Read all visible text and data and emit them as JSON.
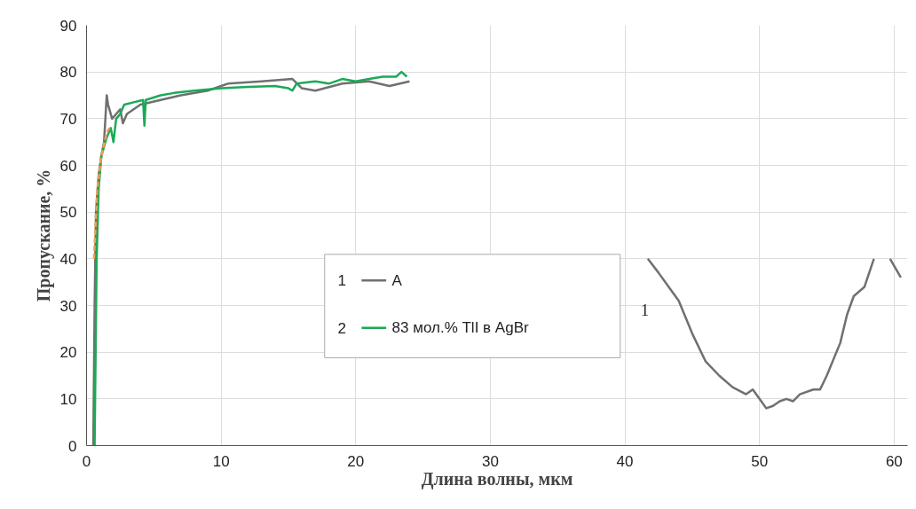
{
  "chart_data": {
    "type": "line",
    "xlabel": "Длина волны, мкм",
    "ylabel": "Пропускание, %",
    "xlim": [
      0,
      61
    ],
    "ylim": [
      0,
      90
    ],
    "xticks": [
      0,
      10,
      20,
      30,
      40,
      50,
      60
    ],
    "yticks": [
      0,
      10,
      20,
      30,
      40,
      50,
      60,
      70,
      80,
      90
    ],
    "grid": true,
    "legend": "center",
    "line_style": "solid",
    "marker": "none",
    "series": [
      {
        "name": "A",
        "color": "#707070",
        "x": [
          0.5,
          0.6,
          0.7,
          0.9,
          1.1,
          1.3,
          1.5,
          1.6,
          1.9,
          2.5,
          2.7,
          3,
          4,
          5.5,
          7,
          9,
          10.5,
          13,
          15.3,
          16,
          17,
          19,
          21,
          22.5,
          24,
          33,
          41.7,
          42.5,
          43.5,
          44,
          45,
          46,
          47,
          48,
          49,
          49.5,
          50,
          50.5,
          51,
          51.5,
          52,
          52.5,
          53,
          54,
          54.5,
          55,
          56,
          56.5,
          57,
          57.8,
          58.5,
          59.1,
          59.7,
          60.5
        ],
        "values": [
          0,
          30,
          50,
          58,
          62,
          65,
          75,
          73,
          70,
          72,
          69,
          71,
          73,
          74,
          75,
          76,
          77.5,
          78,
          78.5,
          76.5,
          76,
          77.5,
          78,
          77,
          78,
          null,
          40,
          37,
          33,
          31,
          24,
          18,
          15,
          12.5,
          11,
          12,
          10,
          8,
          8.5,
          9.5,
          10,
          9.5,
          11,
          12,
          12,
          15,
          22,
          28,
          32,
          34,
          40,
          null,
          40,
          36
        ]
      },
      {
        "name": "83 мол.% TlI в AgBr",
        "color": "#1aaa55",
        "x": [
          0.6,
          0.75,
          0.9,
          1.1,
          1.5,
          1.8,
          2,
          2.2,
          2.5,
          2.8,
          3.5,
          4.2,
          4.3,
          4.4,
          5.5,
          6.5,
          8,
          10,
          12,
          14,
          15,
          15.3,
          15.6,
          17,
          18,
          19,
          20,
          21,
          22,
          23,
          23.4,
          23.8
        ],
        "values": [
          0,
          40,
          55,
          62,
          66,
          68,
          65,
          70,
          71,
          73,
          73.5,
          74,
          68.5,
          74,
          75,
          75.5,
          76,
          76.5,
          76.8,
          77,
          76.5,
          76,
          77.5,
          78,
          77.5,
          78.5,
          78,
          78.5,
          79,
          79,
          80,
          79
        ]
      },
      {
        "color": "#f0a050",
        "line_style": "dashed",
        "x": [
          0.55,
          0.8,
          1.1,
          1.5,
          1.7
        ],
        "values": [
          40,
          55,
          62,
          67,
          68
        ]
      }
    ],
    "annotations": [
      "1",
      "2",
      "1"
    ]
  }
}
